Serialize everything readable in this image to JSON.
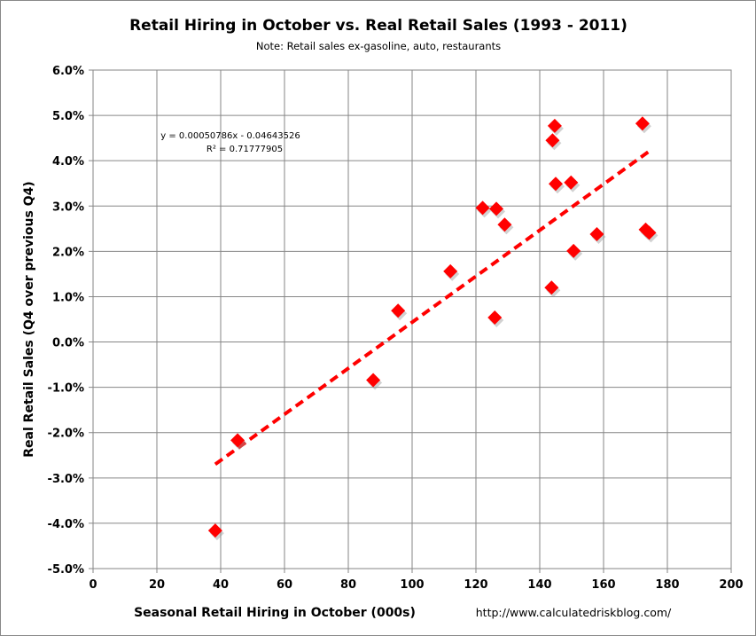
{
  "chart_data": {
    "type": "scatter",
    "title": "Retail Hiring in October vs. Real Retail Sales (1993 - 2011)",
    "subtitle": "Note: Retail sales ex-gasoline, auto, restaurants",
    "xlabel": "Seasonal Retail Hiring in October (000s)",
    "ylabel": "Real Retail Sales (Q4 over previous Q4)",
    "xlim": [
      0,
      200
    ],
    "ylim": [
      -5.0,
      6.0
    ],
    "xticks": [
      "0",
      "20",
      "40",
      "60",
      "80",
      "100",
      "120",
      "140",
      "160",
      "180",
      "200"
    ],
    "yticks": [
      "-5.0%",
      "-4.0%",
      "-3.0%",
      "-2.0%",
      "-1.0%",
      "0.0%",
      "1.0%",
      "2.0%",
      "3.0%",
      "4.0%",
      "5.0%",
      "6.0%"
    ],
    "grid": true,
    "marker_color": "#ff0000",
    "points": [
      {
        "x": 144.7,
        "y": 4.77
      },
      {
        "x": 144.0,
        "y": 4.45
      },
      {
        "x": 172.2,
        "y": 4.82
      },
      {
        "x": 145.0,
        "y": 3.49
      },
      {
        "x": 149.8,
        "y": 3.52
      },
      {
        "x": 122.1,
        "y": 2.96
      },
      {
        "x": 126.4,
        "y": 2.94
      },
      {
        "x": 129.0,
        "y": 2.59
      },
      {
        "x": 157.9,
        "y": 2.38
      },
      {
        "x": 173.2,
        "y": 2.48
      },
      {
        "x": 174.3,
        "y": 2.41
      },
      {
        "x": 150.6,
        "y": 2.01
      },
      {
        "x": 112.0,
        "y": 1.56
      },
      {
        "x": 143.7,
        "y": 1.2
      },
      {
        "x": 95.6,
        "y": 0.69
      },
      {
        "x": 125.9,
        "y": 0.54
      },
      {
        "x": 87.8,
        "y": -0.84
      },
      {
        "x": 45.3,
        "y": -2.17
      },
      {
        "x": 38.3,
        "y": -4.16
      }
    ],
    "trendline": {
      "type": "linear",
      "slope": 0.00050786,
      "intercept": -0.04643526,
      "x_range": [
        38.3,
        174.3
      ],
      "color": "#ff0000",
      "equation_label": "y = 0.00050786x - 0.04643526",
      "r2_label": "R² = 0.71777905"
    },
    "source": "http://www.calculatedriskblog.com/"
  }
}
